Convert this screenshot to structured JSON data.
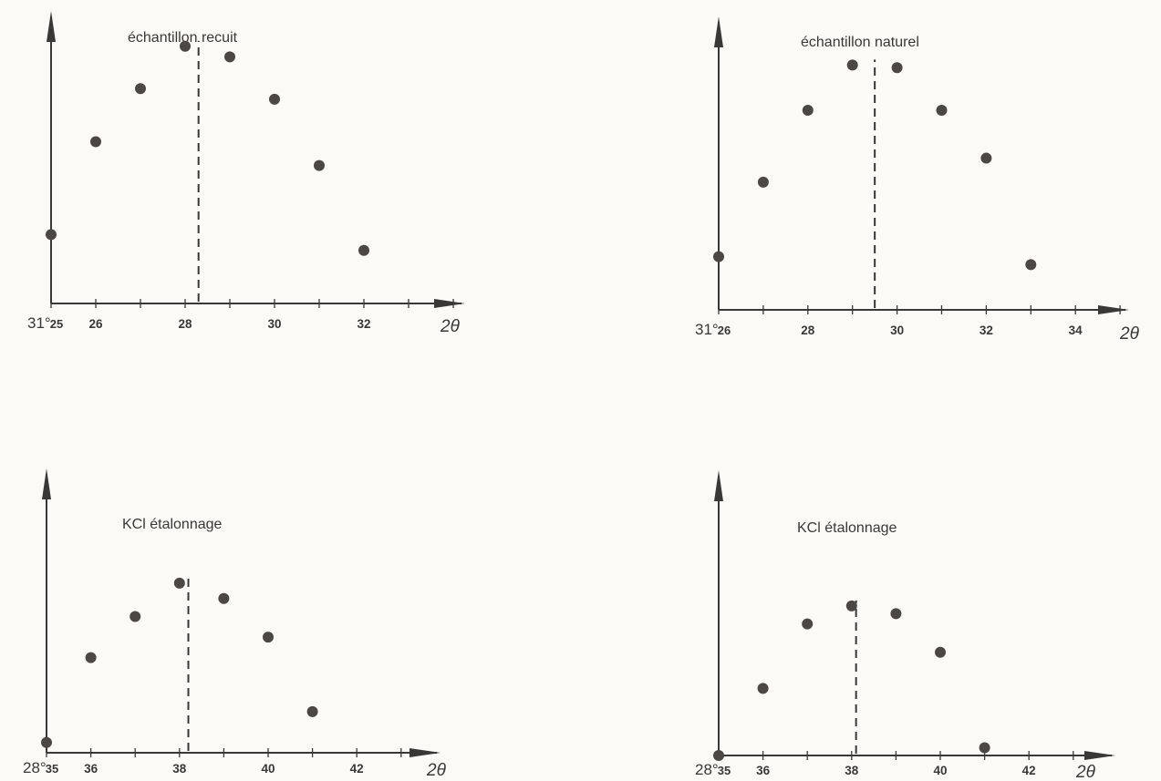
{
  "colors": {
    "ink": "#3a3836",
    "marker": "#4a4745",
    "paper": "#fbfaf6"
  },
  "chart_data": [
    {
      "type": "scatter",
      "title": "échantillon recuit",
      "xlabel": "2θ",
      "origin_label": "31°",
      "x_tick_labels": [
        "25",
        "26",
        "28",
        "30",
        "32"
      ],
      "x_tick_values": [
        25,
        26,
        28,
        30,
        32
      ],
      "xlim": [
        25,
        34
      ],
      "ylim": [
        0,
        100
      ],
      "x": [
        25,
        26,
        27,
        28,
        29,
        30,
        31,
        32
      ],
      "y": [
        26,
        61,
        81,
        97,
        93,
        77,
        52,
        20
      ],
      "peak_line_x": 28.3,
      "y_axis_ticks": false
    },
    {
      "type": "scatter",
      "title": "échantillon naturel",
      "xlabel": "2θ",
      "origin_label": "31°",
      "x_tick_labels": [
        "26",
        "28",
        "30",
        "32",
        "34"
      ],
      "x_tick_values": [
        26,
        28,
        30,
        32,
        34
      ],
      "xlim": [
        26,
        35.5
      ],
      "ylim": [
        0,
        100
      ],
      "x": [
        26,
        27,
        28,
        29,
        30,
        31,
        32,
        33
      ],
      "y": [
        20,
        48,
        75,
        92,
        91,
        75,
        57,
        17
      ],
      "peak_line_x": 29.5,
      "y_axis_ticks": false
    },
    {
      "type": "scatter",
      "title": "KCl étalonnage",
      "xlabel": "2θ",
      "origin_label": "28°",
      "x_tick_labels": [
        "35",
        "36",
        "38",
        "40",
        "42"
      ],
      "x_tick_values": [
        35,
        36,
        38,
        40,
        42
      ],
      "xlim": [
        35,
        43.5
      ],
      "ylim": [
        0,
        100
      ],
      "x": [
        35,
        36,
        37,
        38,
        39,
        40,
        41
      ],
      "y": [
        4,
        37,
        53,
        66,
        60,
        45,
        16
      ],
      "peak_line_x": 38.2,
      "y_axis_ticks": false
    },
    {
      "type": "scatter",
      "title": "KCl étalonnage",
      "xlabel": "2θ",
      "origin_label": "28°",
      "x_tick_labels": [
        "35",
        "36",
        "38",
        "40",
        "42"
      ],
      "x_tick_values": [
        35,
        36,
        38,
        40,
        42
      ],
      "xlim": [
        35,
        43
      ],
      "ylim": [
        0,
        100
      ],
      "x": [
        35,
        36,
        37,
        38,
        39,
        40,
        41
      ],
      "y": [
        0,
        26,
        51,
        58,
        55,
        40,
        3
      ],
      "peak_line_x": 38.1,
      "y_axis_ticks": false
    }
  ]
}
